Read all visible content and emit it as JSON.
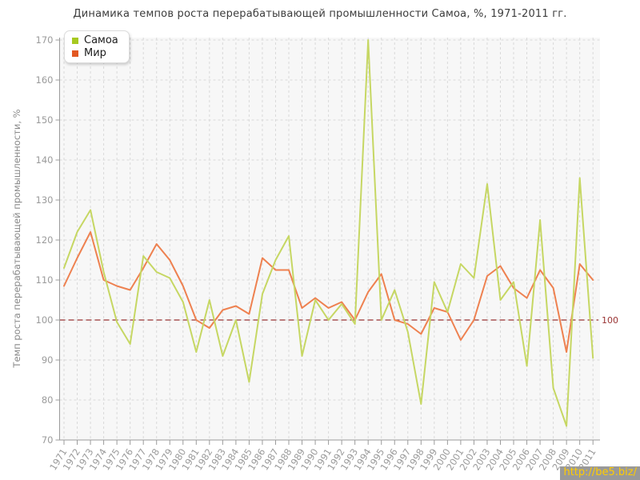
{
  "chart_data": {
    "type": "line",
    "title": "Динамика темпов роста перерабатывающей промышленности Самоа, %, 1971-2011 гг.",
    "ylabel": "Темп роста перерабатывающей промышленности, %",
    "xlabel": "",
    "ylim": [
      70,
      170
    ],
    "ytick_step": 10,
    "grid": "dashed",
    "legend_position": "top-left",
    "baseline": {
      "value": 100,
      "label": "100",
      "color": "#993333"
    },
    "x": [
      1971,
      1972,
      1973,
      1974,
      1975,
      1976,
      1977,
      1978,
      1979,
      1980,
      1981,
      1982,
      1983,
      1984,
      1985,
      1986,
      1987,
      1988,
      1989,
      1990,
      1991,
      1992,
      1993,
      1994,
      1995,
      1996,
      1997,
      1998,
      1999,
      2000,
      2001,
      2002,
      2003,
      2004,
      2005,
      2006,
      2007,
      2008,
      2009,
      2010,
      2011
    ],
    "series": [
      {
        "name": "Самоа",
        "line_color": "#c6d763",
        "swatch_color": "#a7c920",
        "values": [
          113,
          122,
          127.5,
          112,
          99.5,
          94,
          116,
          112,
          110.5,
          104.5,
          92,
          105,
          91,
          100,
          84.5,
          106.5,
          115,
          121,
          91,
          105,
          100,
          104,
          99,
          170,
          100,
          107.5,
          97,
          79,
          109.5,
          102,
          114,
          110.5,
          134,
          105,
          109.5,
          88.5,
          125,
          83,
          73.5,
          135.5,
          90.5
        ]
      },
      {
        "name": "Мир",
        "line_color": "#ee8150",
        "swatch_color": "#e25822",
        "values": [
          108.5,
          115.5,
          122,
          110,
          108.5,
          107.5,
          113,
          119,
          115,
          108.5,
          100,
          98,
          102.5,
          103.5,
          101.5,
          115.5,
          112.5,
          112.5,
          103,
          105.5,
          103,
          104.5,
          100,
          107,
          111.5,
          100,
          99,
          96.5,
          103,
          102,
          95,
          100,
          111,
          113.5,
          108,
          105.5,
          112.5,
          108,
          92,
          114,
          110
        ]
      }
    ]
  },
  "watermark": {
    "text": "http://be5.biz/"
  },
  "style": {
    "plot_bg": "#f7f7f7",
    "grid_color": "#d9d9d9",
    "axis_color": "#9b9b9b",
    "tick_label_color": "#9b9b9b"
  }
}
